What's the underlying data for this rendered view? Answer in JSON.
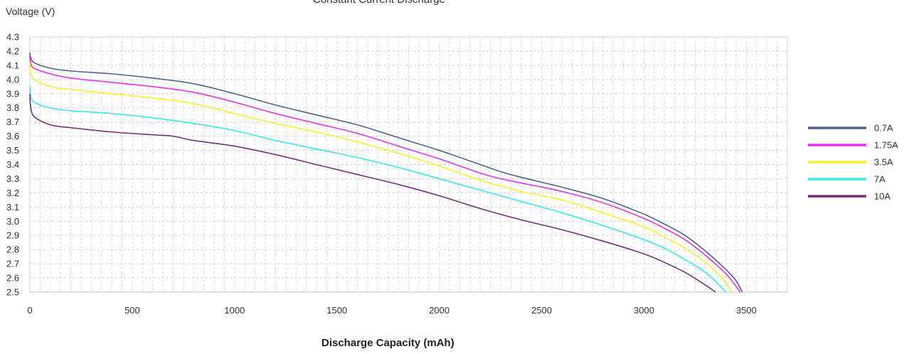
{
  "chart_data": {
    "type": "line",
    "title": "Constant Current Discharge",
    "xlabel": "Discharge Capacity (mAh)",
    "ylabel": "Voltage (V)",
    "xlim": [
      0,
      3700
    ],
    "ylim": [
      2.5,
      4.3
    ],
    "xticks": [
      "0",
      "500",
      "1000",
      "1500",
      "2000",
      "2500",
      "3000",
      "3500"
    ],
    "yticks": [
      "4.3",
      "4.2",
      "4.1",
      "4.0",
      "3.9",
      "3.8",
      "3.7",
      "3.6",
      "3.5",
      "3.4",
      "3.3",
      "3.2",
      "3.1",
      "3.0",
      "2.9",
      "2.8",
      "2.7",
      "2.6",
      "2.5"
    ],
    "grid": true,
    "legend_position": "right",
    "series": [
      {
        "name": "0.7A",
        "color": "#4a6491",
        "points": [
          [
            0,
            4.19
          ],
          [
            3,
            4.16
          ],
          [
            20,
            4.12
          ],
          [
            100,
            4.08
          ],
          [
            200,
            4.06
          ],
          [
            400,
            4.04
          ],
          [
            600,
            4.01
          ],
          [
            800,
            3.97
          ],
          [
            1000,
            3.9
          ],
          [
            1200,
            3.82
          ],
          [
            1400,
            3.75
          ],
          [
            1600,
            3.68
          ],
          [
            1800,
            3.59
          ],
          [
            2000,
            3.5
          ],
          [
            2200,
            3.4
          ],
          [
            2300,
            3.35
          ],
          [
            2400,
            3.31
          ],
          [
            2600,
            3.24
          ],
          [
            2800,
            3.16
          ],
          [
            3000,
            3.05
          ],
          [
            3100,
            2.98
          ],
          [
            3200,
            2.9
          ],
          [
            3300,
            2.79
          ],
          [
            3400,
            2.66
          ],
          [
            3450,
            2.58
          ],
          [
            3480,
            2.5
          ]
        ]
      },
      {
        "name": "1.75A",
        "color": "#e834e8",
        "points": [
          [
            0,
            4.17
          ],
          [
            3,
            4.12
          ],
          [
            20,
            4.08
          ],
          [
            100,
            4.04
          ],
          [
            200,
            4.01
          ],
          [
            400,
            3.98
          ],
          [
            600,
            3.95
          ],
          [
            800,
            3.91
          ],
          [
            1000,
            3.84
          ],
          [
            1200,
            3.76
          ],
          [
            1400,
            3.69
          ],
          [
            1600,
            3.62
          ],
          [
            1800,
            3.53
          ],
          [
            2000,
            3.44
          ],
          [
            2200,
            3.34
          ],
          [
            2300,
            3.3
          ],
          [
            2400,
            3.27
          ],
          [
            2600,
            3.21
          ],
          [
            2800,
            3.13
          ],
          [
            3000,
            3.02
          ],
          [
            3100,
            2.95
          ],
          [
            3200,
            2.87
          ],
          [
            3300,
            2.76
          ],
          [
            3400,
            2.63
          ],
          [
            3440,
            2.56
          ],
          [
            3470,
            2.5
          ]
        ]
      },
      {
        "name": "3.5A",
        "color": "#f2f22e",
        "points": [
          [
            0,
            4.12
          ],
          [
            3,
            4.05
          ],
          [
            20,
            4.0
          ],
          [
            100,
            3.95
          ],
          [
            200,
            3.93
          ],
          [
            400,
            3.9
          ],
          [
            600,
            3.87
          ],
          [
            800,
            3.83
          ],
          [
            1000,
            3.76
          ],
          [
            1200,
            3.69
          ],
          [
            1400,
            3.63
          ],
          [
            1600,
            3.56
          ],
          [
            1800,
            3.48
          ],
          [
            2000,
            3.39
          ],
          [
            2200,
            3.29
          ],
          [
            2300,
            3.25
          ],
          [
            2400,
            3.21
          ],
          [
            2600,
            3.15
          ],
          [
            2800,
            3.06
          ],
          [
            3000,
            2.96
          ],
          [
            3100,
            2.89
          ],
          [
            3200,
            2.81
          ],
          [
            3300,
            2.71
          ],
          [
            3380,
            2.6
          ],
          [
            3430,
            2.5
          ]
        ]
      },
      {
        "name": "7A",
        "color": "#38e8ec",
        "points": [
          [
            0,
            3.95
          ],
          [
            3,
            3.89
          ],
          [
            20,
            3.84
          ],
          [
            100,
            3.8
          ],
          [
            200,
            3.78
          ],
          [
            400,
            3.76
          ],
          [
            600,
            3.73
          ],
          [
            800,
            3.69
          ],
          [
            1000,
            3.64
          ],
          [
            1200,
            3.57
          ],
          [
            1400,
            3.51
          ],
          [
            1600,
            3.45
          ],
          [
            1800,
            3.38
          ],
          [
            2000,
            3.3
          ],
          [
            2200,
            3.22
          ],
          [
            2400,
            3.14
          ],
          [
            2600,
            3.06
          ],
          [
            2800,
            2.97
          ],
          [
            3000,
            2.87
          ],
          [
            3100,
            2.81
          ],
          [
            3200,
            2.73
          ],
          [
            3300,
            2.64
          ],
          [
            3360,
            2.56
          ],
          [
            3400,
            2.5
          ]
        ]
      },
      {
        "name": "10A",
        "color": "#7b2c82",
        "points": [
          [
            0,
            3.9
          ],
          [
            3,
            3.82
          ],
          [
            20,
            3.74
          ],
          [
            100,
            3.68
          ],
          [
            200,
            3.66
          ],
          [
            400,
            3.63
          ],
          [
            600,
            3.61
          ],
          [
            700,
            3.6
          ],
          [
            800,
            3.57
          ],
          [
            1000,
            3.53
          ],
          [
            1200,
            3.47
          ],
          [
            1400,
            3.4
          ],
          [
            1600,
            3.33
          ],
          [
            1800,
            3.26
          ],
          [
            2000,
            3.18
          ],
          [
            2200,
            3.09
          ],
          [
            2400,
            3.01
          ],
          [
            2600,
            2.94
          ],
          [
            2800,
            2.86
          ],
          [
            3000,
            2.77
          ],
          [
            3100,
            2.71
          ],
          [
            3200,
            2.64
          ],
          [
            3300,
            2.55
          ],
          [
            3350,
            2.5
          ]
        ]
      }
    ]
  }
}
